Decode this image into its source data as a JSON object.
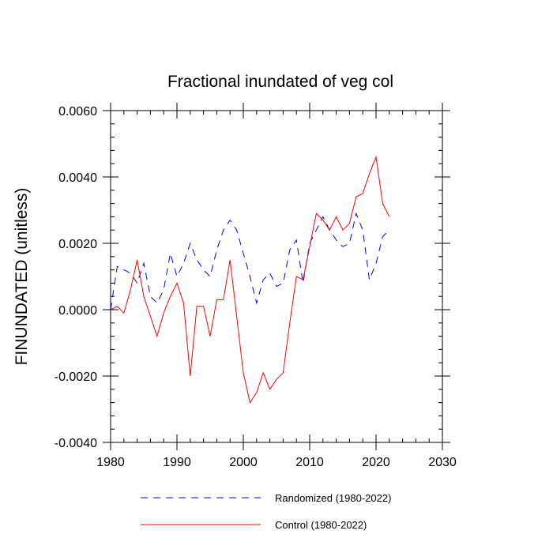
{
  "chart_data": {
    "type": "line",
    "title": "Fractional inundated of veg col",
    "xlabel": "",
    "ylabel": "FINUNDATED  (unitless)",
    "xlim": [
      1980,
      2030
    ],
    "ylim": [
      -0.004,
      0.006
    ],
    "xticks": [
      1980,
      1990,
      2000,
      2010,
      2020,
      2030
    ],
    "xtick_labels": [
      "1980",
      "1990",
      "2000",
      "2010",
      "2020",
      "2030"
    ],
    "yticks": [
      -0.004,
      -0.002,
      0.0,
      0.002,
      0.004,
      0.006
    ],
    "ytick_labels": [
      "-0.0040",
      "-0.0020",
      "0.0000",
      "0.0020",
      "0.0040",
      "0.0060"
    ],
    "legend_position": "bottom",
    "x": [
      1980,
      1981,
      1982,
      1983,
      1984,
      1985,
      1986,
      1987,
      1988,
      1989,
      1990,
      1991,
      1992,
      1993,
      1994,
      1995,
      1996,
      1997,
      1998,
      1999,
      2000,
      2001,
      2002,
      2003,
      2004,
      2005,
      2006,
      2007,
      2008,
      2009,
      2010,
      2011,
      2012,
      2013,
      2014,
      2015,
      2016,
      2017,
      2018,
      2019,
      2020,
      2021,
      2022
    ],
    "series": [
      {
        "name": "Randomized (1980-2022)",
        "color": "#0000ff",
        "style": "dashed",
        "values": [
          0.0,
          0.0013,
          0.0012,
          0.0011,
          0.0008,
          0.0014,
          0.0004,
          0.0002,
          0.0006,
          0.0017,
          0.001,
          0.0014,
          0.002,
          0.0015,
          0.0012,
          0.001,
          0.0018,
          0.0024,
          0.0027,
          0.0024,
          0.0017,
          0.001,
          0.0002,
          0.0009,
          0.0011,
          0.0007,
          0.0008,
          0.0018,
          0.0021,
          0.0008,
          0.002,
          0.0024,
          0.0028,
          0.0024,
          0.0021,
          0.0019,
          0.002,
          0.0029,
          0.0024,
          0.0009,
          0.0014,
          0.0022,
          0.0024
        ]
      },
      {
        "name": "Control (1980-2022)",
        "color": "#ff0000",
        "style": "solid",
        "values": [
          0.0,
          0.0001,
          -0.0001,
          0.0006,
          0.0015,
          0.0004,
          -0.0002,
          -0.0008,
          -0.0001,
          0.0004,
          0.0008,
          0.0002,
          -0.002,
          0.0001,
          0.0001,
          -0.0008,
          0.0003,
          0.0003,
          0.0015,
          -0.0002,
          -0.0019,
          -0.0028,
          -0.0025,
          -0.0019,
          -0.0024,
          -0.0021,
          -0.0019,
          -0.0004,
          0.001,
          0.0009,
          0.0019,
          0.0029,
          0.0027,
          0.0024,
          0.0028,
          0.0024,
          0.0026,
          0.0034,
          0.0035,
          0.0041,
          0.0046,
          0.0032,
          0.0028
        ]
      }
    ]
  }
}
